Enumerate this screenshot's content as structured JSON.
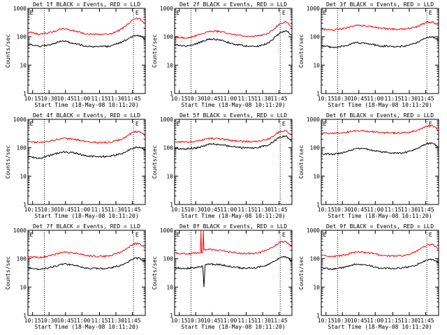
{
  "figure": {
    "ylabel": "Counts/sec",
    "xlabel": "Start Time (18-May-08 10:11:20)",
    "x_ticks": [
      "10:15",
      "10:30",
      "10:45",
      "11:00",
      "11:15",
      "11:30",
      "11:45"
    ],
    "y_ticks": [
      "1",
      "10",
      "100",
      "1000"
    ],
    "flag_label": "E",
    "colors": {
      "events": "#000000",
      "lld": "#ff0000",
      "axes": "#000000"
    }
  },
  "chart_data": [
    {
      "type": "line",
      "title": "Det 1f BLACK = Events, RED = LLD",
      "x_unit": "minutes after 10:11:20",
      "xlim": [
        0,
        100
      ],
      "ylim": [
        1,
        1000
      ],
      "y_scale": "log",
      "dotted_lines_x": [
        14,
        90
      ],
      "flags_x": [
        3,
        93
      ],
      "series": [
        {
          "name": "Events",
          "color": "#000000",
          "x": [
            0,
            10,
            20,
            30,
            40,
            50,
            60,
            70,
            80,
            90,
            95,
            100
          ],
          "y": [
            55,
            45,
            55,
            72,
            58,
            46,
            45,
            45,
            65,
            105,
            110,
            80
          ]
        },
        {
          "name": "LLD",
          "color": "#ff0000",
          "x": [
            0,
            10,
            20,
            30,
            40,
            50,
            60,
            70,
            80,
            90,
            95,
            100
          ],
          "y": [
            150,
            120,
            145,
            200,
            160,
            125,
            120,
            125,
            185,
            420,
            450,
            270
          ]
        }
      ]
    },
    {
      "type": "line",
      "title": "Det 2f BLACK = Events, RED = LLD",
      "x_unit": "minutes after 10:11:20",
      "xlim": [
        0,
        100
      ],
      "ylim": [
        1,
        1000
      ],
      "y_scale": "log",
      "dotted_lines_x": [
        14,
        90
      ],
      "flags_x": [
        3,
        93
      ],
      "series": [
        {
          "name": "Events",
          "color": "#000000",
          "x": [
            0,
            10,
            20,
            30,
            40,
            50,
            60,
            70,
            80,
            90,
            95,
            100
          ],
          "y": [
            55,
            45,
            60,
            85,
            75,
            55,
            48,
            45,
            60,
            140,
            165,
            110
          ]
        },
        {
          "name": "LLD",
          "color": "#ff0000",
          "x": [
            0,
            10,
            20,
            30,
            40,
            50,
            60,
            70,
            80,
            90,
            95,
            100
          ],
          "y": [
            100,
            90,
            115,
            160,
            150,
            120,
            105,
            105,
            130,
            300,
            340,
            230
          ]
        }
      ]
    },
    {
      "type": "line",
      "title": "Det 3f BLACK = Events, RED = LLD",
      "x_unit": "minutes after 10:11:20",
      "xlim": [
        0,
        100
      ],
      "ylim": [
        1,
        1000
      ],
      "y_scale": "log",
      "dotted_lines_x": [
        14,
        90
      ],
      "flags_x": [
        3,
        93
      ],
      "series": [
        {
          "name": "Events",
          "color": "#000000",
          "x": [
            0,
            10,
            20,
            30,
            40,
            50,
            60,
            70,
            80,
            90,
            95,
            100
          ],
          "y": [
            48,
            42,
            48,
            62,
            58,
            48,
            45,
            46,
            58,
            95,
            100,
            75
          ]
        },
        {
          "name": "LLD",
          "color": "#ff0000",
          "x": [
            0,
            10,
            20,
            30,
            40,
            50,
            60,
            70,
            80,
            90,
            95,
            100
          ],
          "y": [
            185,
            170,
            200,
            250,
            240,
            205,
            185,
            185,
            215,
            320,
            340,
            240
          ]
        }
      ]
    },
    {
      "type": "line",
      "title": "Det 4f BLACK = Events, RED = LLD",
      "x_unit": "minutes after 10:11:20",
      "xlim": [
        0,
        100
      ],
      "ylim": [
        1,
        1000
      ],
      "y_scale": "log",
      "dotted_lines_x": [
        14,
        90
      ],
      "flags_x": [
        3,
        93
      ],
      "series": [
        {
          "name": "Events",
          "color": "#000000",
          "x": [
            0,
            10,
            20,
            30,
            40,
            50,
            60,
            70,
            80,
            90,
            95,
            100
          ],
          "y": [
            48,
            42,
            55,
            72,
            65,
            52,
            48,
            50,
            62,
            100,
            105,
            78
          ]
        },
        {
          "name": "LLD",
          "color": "#ff0000",
          "x": [
            0,
            10,
            20,
            30,
            40,
            50,
            60,
            70,
            80,
            90,
            95,
            100
          ],
          "y": [
            170,
            150,
            175,
            215,
            200,
            165,
            150,
            155,
            200,
            360,
            380,
            260
          ]
        }
      ]
    },
    {
      "type": "line",
      "title": "Det 5f BLACK = Events, RED = LLD",
      "x_unit": "minutes after 10:11:20",
      "xlim": [
        0,
        100
      ],
      "ylim": [
        1,
        1000
      ],
      "y_scale": "log",
      "dotted_lines_x": [
        14,
        90
      ],
      "flags_x": [
        3,
        93
      ],
      "series": [
        {
          "name": "Events",
          "color": "#000000",
          "x": [
            0,
            10,
            20,
            30,
            40,
            50,
            60,
            70,
            80,
            90,
            95,
            100
          ],
          "y": [
            95,
            92,
            100,
            135,
            128,
            108,
            98,
            98,
            125,
            240,
            260,
            170
          ]
        },
        {
          "name": "LLD",
          "color": "#ff0000",
          "x": [
            0,
            10,
            20,
            30,
            40,
            50,
            60,
            70,
            80,
            90,
            95,
            100
          ],
          "y": [
            165,
            160,
            170,
            215,
            205,
            175,
            165,
            165,
            200,
            380,
            400,
            270
          ]
        }
      ]
    },
    {
      "type": "line",
      "title": "Det 6f BLACK = Events, RED = LLD",
      "x_unit": "minutes after 10:11:20",
      "xlim": [
        0,
        100
      ],
      "ylim": [
        1,
        1000
      ],
      "y_scale": "log",
      "dotted_lines_x": [
        14,
        90
      ],
      "flags_x": [
        3,
        93
      ],
      "series": [
        {
          "name": "Events",
          "color": "#000000",
          "x": [
            0,
            10,
            20,
            30,
            40,
            50,
            60,
            70,
            80,
            90,
            95,
            100
          ],
          "y": [
            62,
            58,
            68,
            95,
            88,
            72,
            65,
            65,
            85,
            140,
            145,
            105
          ]
        },
        {
          "name": "LLD",
          "color": "#ff0000",
          "x": [
            0,
            10,
            20,
            30,
            40,
            50,
            60,
            70,
            80,
            90,
            95,
            100
          ],
          "y": [
            330,
            320,
            340,
            400,
            380,
            345,
            330,
            335,
            380,
            560,
            590,
            420
          ]
        }
      ]
    },
    {
      "type": "line",
      "title": "Det 7f BLACK = Events, RED = LLD",
      "x_unit": "minutes after 10:11:20",
      "xlim": [
        0,
        100
      ],
      "ylim": [
        1,
        1000
      ],
      "y_scale": "log",
      "dotted_lines_x": [
        14,
        90
      ],
      "flags_x": [
        3,
        93
      ],
      "series": [
        {
          "name": "Events",
          "color": "#000000",
          "x": [
            0,
            10,
            20,
            30,
            40,
            50,
            60,
            70,
            80,
            90,
            95,
            100
          ],
          "y": [
            48,
            42,
            50,
            65,
            58,
            46,
            45,
            47,
            60,
            100,
            105,
            75
          ]
        },
        {
          "name": "LLD",
          "color": "#ff0000",
          "x": [
            0,
            10,
            20,
            30,
            40,
            50,
            60,
            70,
            80,
            90,
            95,
            100
          ],
          "y": [
            120,
            110,
            130,
            170,
            160,
            130,
            120,
            125,
            175,
            330,
            350,
            230
          ]
        }
      ]
    },
    {
      "type": "line",
      "title": "Det 8f BLACK = Events, RED = LLD",
      "x_unit": "minutes after 10:11:20",
      "xlim": [
        0,
        100
      ],
      "ylim": [
        1,
        1000
      ],
      "y_scale": "log",
      "dotted_lines_x": [
        14,
        90
      ],
      "flags_x": [
        3,
        93
      ],
      "series": [
        {
          "name": "Events",
          "color": "#000000",
          "x": [
            0,
            10,
            20,
            24,
            25,
            26,
            30,
            40,
            50,
            60,
            70,
            80,
            90,
            95,
            100
          ],
          "y": [
            48,
            45,
            50,
            55,
            10,
            60,
            65,
            60,
            50,
            46,
            48,
            62,
            110,
            115,
            80
          ]
        },
        {
          "name": "LLD",
          "color": "#ff0000",
          "x": [
            0,
            10,
            20,
            22,
            22.5,
            23,
            24,
            24.5,
            25,
            30,
            40,
            50,
            60,
            70,
            80,
            90,
            95,
            100
          ],
          "y": [
            160,
            145,
            160,
            165,
            1000,
            160,
            175,
            1000,
            210,
            215,
            195,
            165,
            150,
            155,
            210,
            380,
            400,
            260
          ]
        }
      ]
    },
    {
      "type": "line",
      "title": "Det 9f BLACK = Events, RED = LLD",
      "x_unit": "minutes after 10:11:20",
      "xlim": [
        0,
        100
      ],
      "ylim": [
        1,
        1000
      ],
      "y_scale": "log",
      "dotted_lines_x": [
        14,
        90
      ],
      "flags_x": [
        3,
        93
      ],
      "series": [
        {
          "name": "Events",
          "color": "#000000",
          "x": [
            0,
            10,
            20,
            30,
            40,
            50,
            60,
            70,
            80,
            90,
            95,
            100
          ],
          "y": [
            48,
            42,
            50,
            65,
            58,
            46,
            45,
            47,
            58,
            90,
            95,
            70
          ]
        },
        {
          "name": "LLD",
          "color": "#ff0000",
          "x": [
            0,
            10,
            20,
            30,
            40,
            50,
            60,
            70,
            80,
            90,
            95,
            100
          ],
          "y": [
            130,
            120,
            135,
            175,
            165,
            135,
            125,
            128,
            170,
            300,
            320,
            220
          ]
        }
      ]
    }
  ]
}
